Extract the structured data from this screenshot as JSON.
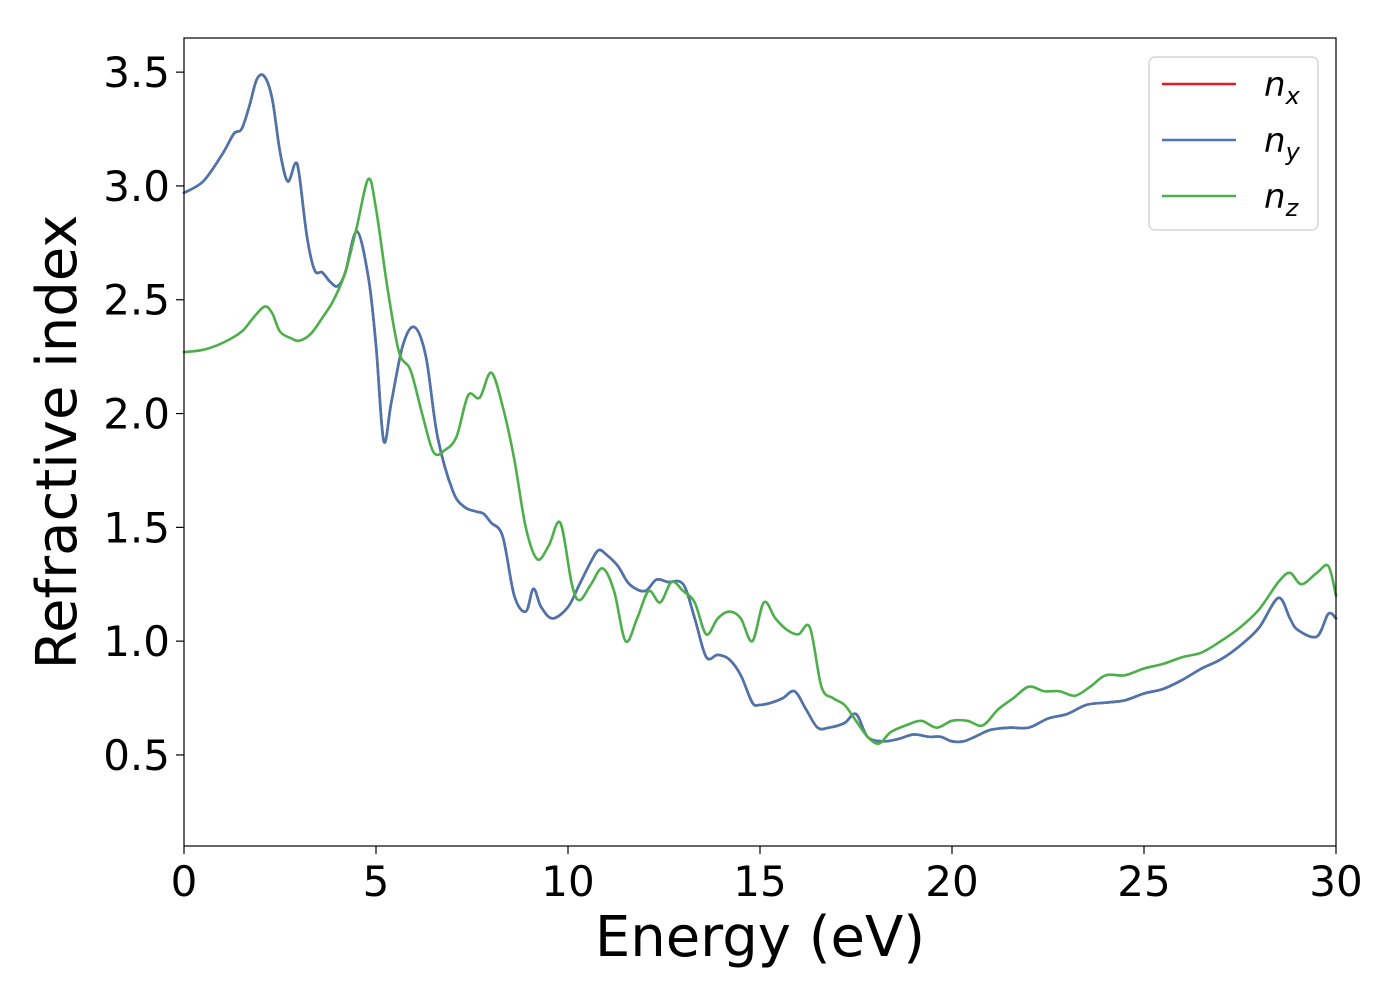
{
  "chart_data": {
    "type": "line",
    "title": "",
    "xlabel": "Energy (eV)",
    "ylabel": "Refractive index",
    "xlim": [
      0,
      30
    ],
    "ylim": [
      0.1,
      3.65
    ],
    "xticks": [
      0,
      5,
      10,
      15,
      20,
      25,
      30
    ],
    "xtick_labels": [
      "0",
      "5",
      "10",
      "15",
      "20",
      "25",
      "30"
    ],
    "yticks": [
      0.5,
      1.0,
      1.5,
      2.0,
      2.5,
      3.0,
      3.5
    ],
    "ytick_labels": [
      "0.5",
      "1.0",
      "1.5",
      "2.0",
      "2.5",
      "3.0",
      "3.5"
    ],
    "grid": false,
    "legend_position": "top-right",
    "series": [
      {
        "name": "n",
        "subscript": "x",
        "color": "#e41a1c",
        "x": [
          0,
          0.5,
          1.0,
          1.3,
          1.5,
          1.7,
          1.9,
          2.1,
          2.3,
          2.5,
          2.7,
          2.9,
          3.0,
          3.2,
          3.4,
          3.6,
          3.8,
          4.0,
          4.2,
          4.5,
          4.8,
          5.0,
          5.2,
          5.4,
          5.7,
          6.0,
          6.3,
          6.6,
          7.0,
          7.3,
          7.6,
          7.8,
          8.0,
          8.3,
          8.6,
          8.9,
          9.1,
          9.3,
          9.6,
          10.0,
          10.3,
          10.6,
          10.8,
          11.0,
          11.3,
          11.6,
          12.0,
          12.3,
          12.6,
          13.0,
          13.3,
          13.6,
          13.9,
          14.2,
          14.5,
          14.8,
          15.0,
          15.3,
          15.6,
          15.9,
          16.2,
          16.5,
          16.8,
          17.2,
          17.5,
          17.8,
          18.2,
          18.6,
          19.0,
          19.4,
          19.7,
          20.0,
          20.3,
          20.6,
          21.0,
          21.5,
          22.0,
          22.5,
          23.0,
          23.5,
          24.0,
          24.5,
          25.0,
          25.5,
          26.0,
          26.5,
          27.0,
          27.5,
          28.0,
          28.5,
          28.8,
          29.0,
          29.5,
          29.8,
          30.0
        ],
        "values": [
          2.97,
          3.02,
          3.14,
          3.23,
          3.25,
          3.35,
          3.47,
          3.48,
          3.38,
          3.15,
          3.02,
          3.1,
          3.05,
          2.78,
          2.63,
          2.62,
          2.58,
          2.56,
          2.62,
          2.8,
          2.6,
          2.3,
          1.88,
          2.05,
          2.3,
          2.38,
          2.25,
          1.9,
          1.66,
          1.59,
          1.57,
          1.56,
          1.52,
          1.46,
          1.2,
          1.13,
          1.23,
          1.15,
          1.1,
          1.15,
          1.25,
          1.35,
          1.4,
          1.38,
          1.33,
          1.25,
          1.22,
          1.27,
          1.26,
          1.25,
          1.1,
          0.93,
          0.94,
          0.92,
          0.85,
          0.73,
          0.72,
          0.73,
          0.75,
          0.78,
          0.7,
          0.62,
          0.62,
          0.64,
          0.68,
          0.58,
          0.56,
          0.57,
          0.59,
          0.58,
          0.58,
          0.56,
          0.56,
          0.58,
          0.61,
          0.62,
          0.62,
          0.66,
          0.68,
          0.72,
          0.73,
          0.74,
          0.77,
          0.79,
          0.83,
          0.88,
          0.92,
          0.98,
          1.06,
          1.19,
          1.1,
          1.05,
          1.02,
          1.12,
          1.1
        ]
      },
      {
        "name": "n",
        "subscript": "y",
        "color": "#4a76b0",
        "x": [
          0,
          0.5,
          1.0,
          1.3,
          1.5,
          1.7,
          1.9,
          2.1,
          2.3,
          2.5,
          2.7,
          2.9,
          3.0,
          3.2,
          3.4,
          3.6,
          3.8,
          4.0,
          4.2,
          4.5,
          4.8,
          5.0,
          5.2,
          5.4,
          5.7,
          6.0,
          6.3,
          6.6,
          7.0,
          7.3,
          7.6,
          7.8,
          8.0,
          8.3,
          8.6,
          8.9,
          9.1,
          9.3,
          9.6,
          10.0,
          10.3,
          10.6,
          10.8,
          11.0,
          11.3,
          11.6,
          12.0,
          12.3,
          12.6,
          13.0,
          13.3,
          13.6,
          13.9,
          14.2,
          14.5,
          14.8,
          15.0,
          15.3,
          15.6,
          15.9,
          16.2,
          16.5,
          16.8,
          17.2,
          17.5,
          17.8,
          18.2,
          18.6,
          19.0,
          19.4,
          19.7,
          20.0,
          20.3,
          20.6,
          21.0,
          21.5,
          22.0,
          22.5,
          23.0,
          23.5,
          24.0,
          24.5,
          25.0,
          25.5,
          26.0,
          26.5,
          27.0,
          27.5,
          28.0,
          28.5,
          28.8,
          29.0,
          29.5,
          29.8,
          30.0
        ],
        "values": [
          2.97,
          3.02,
          3.14,
          3.23,
          3.25,
          3.35,
          3.47,
          3.48,
          3.38,
          3.15,
          3.02,
          3.1,
          3.05,
          2.78,
          2.63,
          2.62,
          2.58,
          2.56,
          2.62,
          2.8,
          2.6,
          2.3,
          1.88,
          2.05,
          2.3,
          2.38,
          2.25,
          1.9,
          1.66,
          1.59,
          1.57,
          1.56,
          1.52,
          1.46,
          1.2,
          1.13,
          1.23,
          1.15,
          1.1,
          1.15,
          1.25,
          1.35,
          1.4,
          1.38,
          1.33,
          1.25,
          1.22,
          1.27,
          1.26,
          1.25,
          1.1,
          0.93,
          0.94,
          0.92,
          0.85,
          0.73,
          0.72,
          0.73,
          0.75,
          0.78,
          0.7,
          0.62,
          0.62,
          0.64,
          0.68,
          0.58,
          0.56,
          0.57,
          0.59,
          0.58,
          0.58,
          0.56,
          0.56,
          0.58,
          0.61,
          0.62,
          0.62,
          0.66,
          0.68,
          0.72,
          0.73,
          0.74,
          0.77,
          0.79,
          0.83,
          0.88,
          0.92,
          0.98,
          1.06,
          1.19,
          1.1,
          1.05,
          1.02,
          1.12,
          1.1
        ]
      },
      {
        "name": "n",
        "subscript": "z",
        "color": "#4daf4a",
        "x": [
          0,
          0.5,
          1.0,
          1.5,
          1.8,
          2.1,
          2.3,
          2.5,
          2.8,
          3.0,
          3.3,
          3.6,
          3.9,
          4.2,
          4.5,
          4.8,
          5.0,
          5.3,
          5.6,
          5.9,
          6.2,
          6.5,
          6.8,
          7.1,
          7.4,
          7.7,
          8.0,
          8.3,
          8.6,
          8.9,
          9.2,
          9.5,
          9.8,
          10.1,
          10.3,
          10.6,
          10.9,
          11.2,
          11.5,
          11.8,
          12.1,
          12.4,
          12.7,
          13.0,
          13.3,
          13.6,
          13.9,
          14.2,
          14.5,
          14.8,
          15.1,
          15.4,
          15.7,
          16.0,
          16.3,
          16.6,
          16.9,
          17.2,
          17.5,
          17.8,
          18.1,
          18.4,
          18.8,
          19.2,
          19.6,
          20.0,
          20.4,
          20.8,
          21.2,
          21.6,
          22.0,
          22.4,
          22.8,
          23.2,
          23.6,
          24.0,
          24.5,
          25.0,
          25.5,
          26.0,
          26.5,
          27.0,
          27.5,
          28.0,
          28.5,
          28.8,
          29.1,
          29.5,
          29.8,
          30.0
        ],
        "values": [
          2.27,
          2.28,
          2.31,
          2.36,
          2.42,
          2.47,
          2.44,
          2.36,
          2.33,
          2.32,
          2.35,
          2.42,
          2.5,
          2.62,
          2.82,
          3.03,
          2.9,
          2.55,
          2.27,
          2.19,
          2.0,
          1.83,
          1.84,
          1.9,
          2.08,
          2.07,
          2.18,
          2.03,
          1.8,
          1.5,
          1.36,
          1.42,
          1.52,
          1.25,
          1.18,
          1.25,
          1.32,
          1.22,
          1.0,
          1.1,
          1.22,
          1.17,
          1.26,
          1.22,
          1.17,
          1.03,
          1.1,
          1.13,
          1.1,
          1.0,
          1.17,
          1.1,
          1.05,
          1.03,
          1.06,
          0.8,
          0.75,
          0.72,
          0.65,
          0.58,
          0.55,
          0.6,
          0.63,
          0.65,
          0.62,
          0.65,
          0.65,
          0.63,
          0.7,
          0.75,
          0.8,
          0.78,
          0.78,
          0.76,
          0.8,
          0.85,
          0.85,
          0.88,
          0.9,
          0.93,
          0.95,
          1.0,
          1.06,
          1.14,
          1.26,
          1.3,
          1.25,
          1.3,
          1.33,
          1.2
        ]
      }
    ]
  }
}
